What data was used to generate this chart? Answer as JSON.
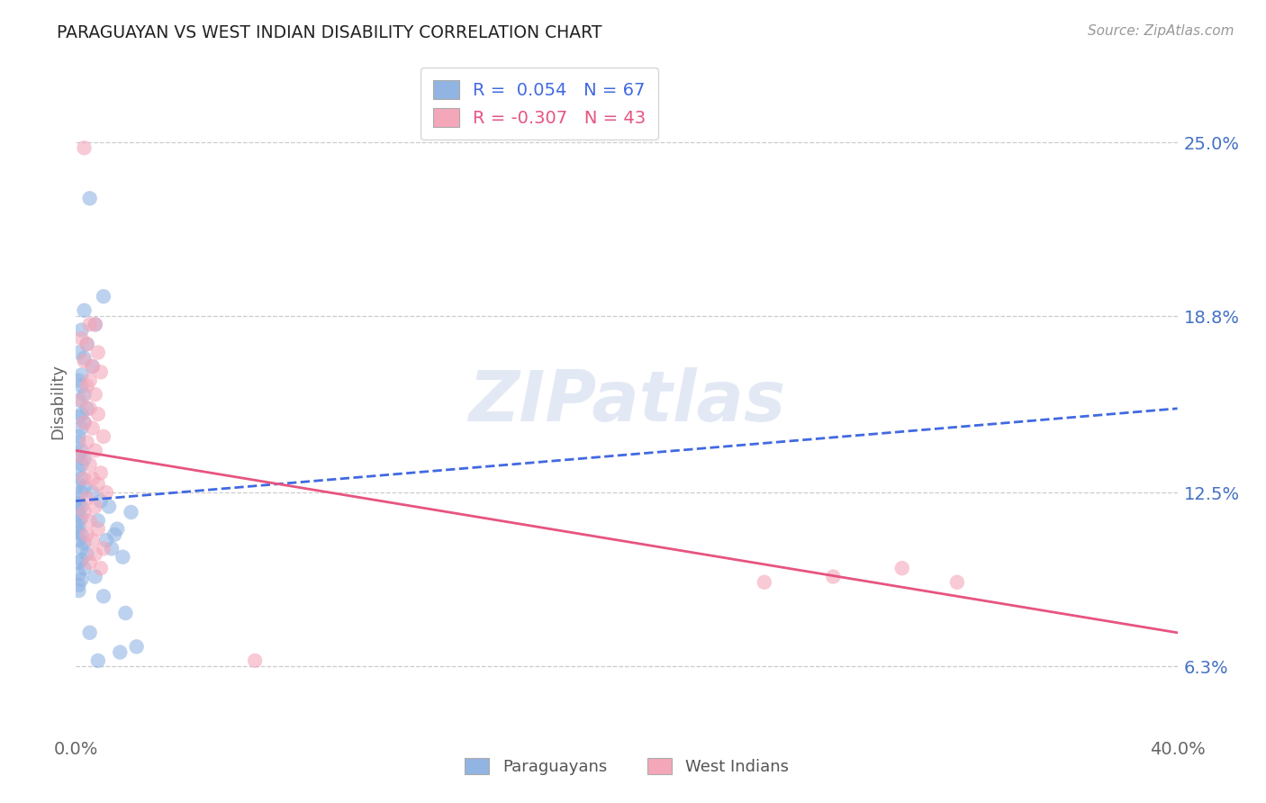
{
  "title": "PARAGUAYAN VS WEST INDIAN DISABILITY CORRELATION CHART",
  "source": "Source: ZipAtlas.com",
  "ylabel": "Disability",
  "xlim": [
    0.0,
    0.4
  ],
  "ylim": [
    0.04,
    0.275
  ],
  "ytick_labels": [
    "6.3%",
    "12.5%",
    "18.8%",
    "25.0%"
  ],
  "ytick_values": [
    0.063,
    0.125,
    0.188,
    0.25
  ],
  "xtick_labels": [
    "0.0%",
    "40.0%"
  ],
  "xtick_values": [
    0.0,
    0.4
  ],
  "paraguayan_color": "#92b4e3",
  "west_indian_color": "#f4a7b9",
  "paraguayan_line_color": "#4169e1",
  "west_indian_line_color": "#e75480",
  "legend_r_paraguayan": "R =  0.054   N = 67",
  "legend_r_west_indian": "R = -0.307   N = 43",
  "watermark": "ZIPatlas",
  "par_trend_x": [
    0.0,
    0.4
  ],
  "par_trend_y": [
    0.122,
    0.155
  ],
  "wi_trend_x": [
    0.0,
    0.4
  ],
  "wi_trend_y": [
    0.14,
    0.075
  ],
  "paraguayan_x": [
    0.005,
    0.01,
    0.003,
    0.007,
    0.002,
    0.004,
    0.001,
    0.003,
    0.006,
    0.002,
    0.001,
    0.002,
    0.003,
    0.001,
    0.004,
    0.002,
    0.001,
    0.003,
    0.002,
    0.001,
    0.001,
    0.002,
    0.001,
    0.003,
    0.002,
    0.001,
    0.002,
    0.001,
    0.003,
    0.002,
    0.001,
    0.001,
    0.002,
    0.001,
    0.002,
    0.001,
    0.001,
    0.001,
    0.002,
    0.001,
    0.003,
    0.002,
    0.004,
    0.002,
    0.001,
    0.003,
    0.001,
    0.002,
    0.001,
    0.001,
    0.008,
    0.012,
    0.015,
    0.02,
    0.009,
    0.014,
    0.011,
    0.006,
    0.013,
    0.017,
    0.007,
    0.01,
    0.018,
    0.005,
    0.022,
    0.016,
    0.008
  ],
  "paraguayan_y": [
    0.23,
    0.195,
    0.19,
    0.185,
    0.183,
    0.178,
    0.175,
    0.173,
    0.17,
    0.167,
    0.165,
    0.163,
    0.16,
    0.158,
    0.155,
    0.153,
    0.152,
    0.15,
    0.148,
    0.145,
    0.143,
    0.14,
    0.138,
    0.137,
    0.135,
    0.133,
    0.13,
    0.128,
    0.127,
    0.125,
    0.123,
    0.121,
    0.12,
    0.118,
    0.116,
    0.115,
    0.113,
    0.111,
    0.11,
    0.108,
    0.107,
    0.105,
    0.103,
    0.101,
    0.1,
    0.098,
    0.096,
    0.094,
    0.092,
    0.09,
    0.115,
    0.12,
    0.112,
    0.118,
    0.122,
    0.11,
    0.108,
    0.125,
    0.105,
    0.102,
    0.095,
    0.088,
    0.082,
    0.075,
    0.07,
    0.068,
    0.065
  ],
  "west_indian_x": [
    0.003,
    0.005,
    0.007,
    0.002,
    0.004,
    0.008,
    0.003,
    0.006,
    0.009,
    0.005,
    0.004,
    0.007,
    0.002,
    0.005,
    0.008,
    0.003,
    0.006,
    0.01,
    0.004,
    0.007,
    0.002,
    0.005,
    0.009,
    0.006,
    0.008,
    0.011,
    0.004,
    0.007,
    0.003,
    0.005,
    0.008,
    0.004,
    0.006,
    0.01,
    0.007,
    0.005,
    0.009,
    0.003,
    0.25,
    0.275,
    0.3,
    0.32,
    0.065
  ],
  "west_indian_y": [
    0.248,
    0.185,
    0.185,
    0.18,
    0.178,
    0.175,
    0.172,
    0.17,
    0.168,
    0.165,
    0.163,
    0.16,
    0.158,
    0.155,
    0.153,
    0.15,
    0.148,
    0.145,
    0.143,
    0.14,
    0.138,
    0.135,
    0.132,
    0.13,
    0.128,
    0.125,
    0.123,
    0.12,
    0.118,
    0.115,
    0.112,
    0.11,
    0.108,
    0.105,
    0.103,
    0.1,
    0.098,
    0.13,
    0.093,
    0.095,
    0.098,
    0.093,
    0.065
  ]
}
